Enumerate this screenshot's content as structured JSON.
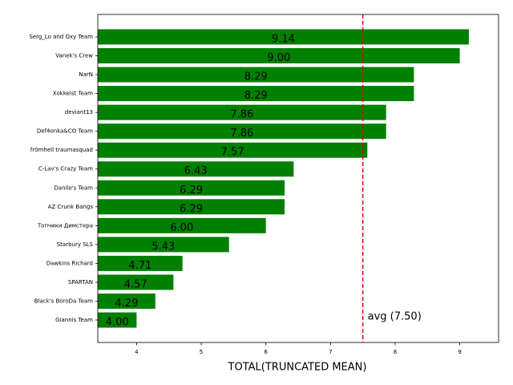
{
  "chart_data": {
    "type": "barh",
    "categories": [
      "Serg_Lo and Oxy Team",
      "Vanek's Crew",
      "NarN",
      "Xokkeist Team",
      "deviant13",
      "Def4onka&CO Team",
      "fr0mhell traumasquad",
      "C-Lav's Crazy Team",
      "Danilo's Team",
      "AZ Crunk Bangs",
      "Топчики Димстера",
      "Starbury SLS",
      "Dawkins Richard",
      "SPARTAN",
      "Black's BoroDa Team",
      "Giannis Team"
    ],
    "values": [
      9.14,
      9.0,
      8.29,
      8.29,
      7.86,
      7.86,
      7.57,
      6.43,
      6.29,
      6.29,
      6.0,
      5.43,
      4.71,
      4.57,
      4.29,
      4.0
    ],
    "value_labels": [
      "9.14",
      "9.00",
      "8.29",
      "8.29",
      "7.86",
      "7.86",
      "7.57",
      "6.43",
      "6.29",
      "6.29",
      "6.00",
      "5.43",
      "4.71",
      "4.57",
      "4.29",
      "4.00"
    ],
    "color": "#008000",
    "xlim": [
      3.4,
      9.6
    ],
    "xticks": [
      4,
      5,
      6,
      7,
      8,
      9
    ],
    "xlabel": "TOTAL(TRUNCATED MEAN)",
    "reference_line": {
      "value": 7.5,
      "color": "#e00000",
      "label": "avg (7.50)"
    }
  }
}
